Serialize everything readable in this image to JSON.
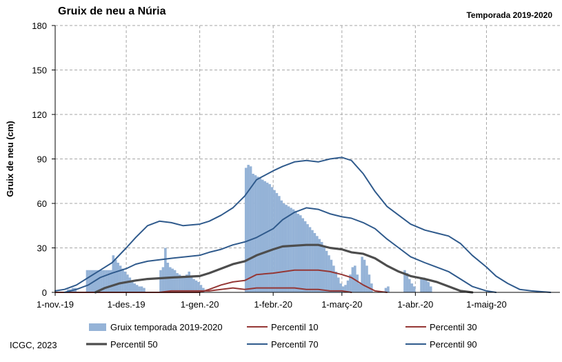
{
  "header": {
    "title": "Gruix de neu a Núria",
    "season": "Temporada 2019-2020"
  },
  "footer": {
    "credit": "ICGC, 2023"
  },
  "chart_data": {
    "type": "bar",
    "ylabel": "Gruix de neu (cm)",
    "ylim": [
      0,
      180
    ],
    "yticks": [
      0,
      30,
      60,
      90,
      120,
      150,
      180
    ],
    "x_date_start": "2019-11-01",
    "x_date_end": "2020-05-31",
    "xticks": [
      {
        "date": "2019-11-01",
        "label": "1-nov.-19"
      },
      {
        "date": "2019-12-01",
        "label": "1-des.-19"
      },
      {
        "date": "2020-01-01",
        "label": "1-gen.-20"
      },
      {
        "date": "2020-02-01",
        "label": "1-febr.-20"
      },
      {
        "date": "2020-03-01",
        "label": "1-març-20"
      },
      {
        "date": "2020-04-01",
        "label": "1-abr.-20"
      },
      {
        "date": "2020-05-01",
        "label": "1-maig-20"
      }
    ],
    "grid": true,
    "legend_position": "bottom",
    "colors": {
      "bars": "#95b3d7",
      "p10": "#953735",
      "p30": "#953735",
      "p50": "#4d4d4d",
      "p70": "#2f5a8c",
      "p90": "#2f5a8c",
      "grid": "#a6a6a6"
    },
    "bars": {
      "name": "Gruix temporada 2019-2020",
      "segments": [
        [
          "2019-11-06",
          2
        ],
        [
          "2019-11-07",
          2
        ],
        [
          "2019-11-08",
          3
        ],
        [
          "2019-11-09",
          3
        ],
        [
          "2019-11-14",
          15
        ],
        [
          "2019-11-15",
          15
        ],
        [
          "2019-11-16",
          15
        ],
        [
          "2019-11-17",
          15
        ],
        [
          "2019-11-18",
          15
        ],
        [
          "2019-11-19",
          15
        ],
        [
          "2019-11-20",
          15
        ],
        [
          "2019-11-21",
          15
        ],
        [
          "2019-11-22",
          15
        ],
        [
          "2019-11-23",
          15
        ],
        [
          "2019-11-24",
          15
        ],
        [
          "2019-11-25",
          25
        ],
        [
          "2019-11-26",
          22
        ],
        [
          "2019-11-27",
          20
        ],
        [
          "2019-11-28",
          18
        ],
        [
          "2019-11-29",
          16
        ],
        [
          "2019-11-30",
          14
        ],
        [
          "2019-12-01",
          12
        ],
        [
          "2019-12-02",
          10
        ],
        [
          "2019-12-03",
          8
        ],
        [
          "2019-12-04",
          6
        ],
        [
          "2019-12-05",
          5
        ],
        [
          "2019-12-06",
          4
        ],
        [
          "2019-12-07",
          4
        ],
        [
          "2019-12-08",
          3
        ],
        [
          "2019-12-15",
          15
        ],
        [
          "2019-12-16",
          17
        ],
        [
          "2019-12-17",
          30
        ],
        [
          "2019-12-18",
          20
        ],
        [
          "2019-12-19",
          17
        ],
        [
          "2019-12-20",
          16
        ],
        [
          "2019-12-21",
          15
        ],
        [
          "2019-12-22",
          13
        ],
        [
          "2019-12-23",
          12
        ],
        [
          "2019-12-24",
          11
        ],
        [
          "2019-12-25",
          10
        ],
        [
          "2019-12-26",
          12
        ],
        [
          "2019-12-27",
          14
        ],
        [
          "2019-12-28",
          10
        ],
        [
          "2019-12-29",
          9
        ],
        [
          "2019-12-30",
          8
        ],
        [
          "2019-12-31",
          7
        ],
        [
          "2020-01-01",
          5
        ],
        [
          "2020-01-02",
          3
        ],
        [
          "2020-01-20",
          84
        ],
        [
          "2020-01-21",
          86
        ],
        [
          "2020-01-22",
          85
        ],
        [
          "2020-01-23",
          80
        ],
        [
          "2020-01-24",
          79
        ],
        [
          "2020-01-25",
          78
        ],
        [
          "2020-01-26",
          77
        ],
        [
          "2020-01-27",
          76
        ],
        [
          "2020-01-28",
          75
        ],
        [
          "2020-01-29",
          74
        ],
        [
          "2020-01-30",
          73
        ],
        [
          "2020-01-31",
          71
        ],
        [
          "2020-02-01",
          69
        ],
        [
          "2020-02-02",
          67
        ],
        [
          "2020-02-03",
          65
        ],
        [
          "2020-02-04",
          62
        ],
        [
          "2020-02-05",
          60
        ],
        [
          "2020-02-06",
          59
        ],
        [
          "2020-02-07",
          58
        ],
        [
          "2020-02-08",
          57
        ],
        [
          "2020-02-09",
          56
        ],
        [
          "2020-02-10",
          55
        ],
        [
          "2020-02-11",
          53
        ],
        [
          "2020-02-12",
          52
        ],
        [
          "2020-02-13",
          50
        ],
        [
          "2020-02-14",
          48
        ],
        [
          "2020-02-15",
          46
        ],
        [
          "2020-02-16",
          44
        ],
        [
          "2020-02-17",
          42
        ],
        [
          "2020-02-18",
          40
        ],
        [
          "2020-02-19",
          38
        ],
        [
          "2020-02-20",
          36
        ],
        [
          "2020-02-21",
          34
        ],
        [
          "2020-02-22",
          31
        ],
        [
          "2020-02-23",
          28
        ],
        [
          "2020-02-24",
          25
        ],
        [
          "2020-02-25",
          22
        ],
        [
          "2020-02-26",
          18
        ],
        [
          "2020-02-27",
          14
        ],
        [
          "2020-02-28",
          10
        ],
        [
          "2020-02-29",
          6
        ],
        [
          "2020-03-01",
          4
        ],
        [
          "2020-03-02",
          5
        ],
        [
          "2020-03-03",
          8
        ],
        [
          "2020-03-04",
          12
        ],
        [
          "2020-03-05",
          17
        ],
        [
          "2020-03-06",
          18
        ],
        [
          "2020-03-07",
          12
        ],
        [
          "2020-03-08",
          6
        ],
        [
          "2020-03-09",
          24
        ],
        [
          "2020-03-10",
          22
        ],
        [
          "2020-03-11",
          18
        ],
        [
          "2020-03-12",
          12
        ],
        [
          "2020-03-13",
          6
        ],
        [
          "2020-03-19",
          3
        ],
        [
          "2020-03-20",
          4
        ],
        [
          "2020-03-27",
          15
        ],
        [
          "2020-03-28",
          13
        ],
        [
          "2020-03-29",
          9
        ],
        [
          "2020-03-30",
          6
        ],
        [
          "2020-03-31",
          4
        ],
        [
          "2020-04-03",
          10
        ],
        [
          "2020-04-04",
          10
        ],
        [
          "2020-04-05",
          9
        ],
        [
          "2020-04-06",
          7
        ],
        [
          "2020-04-07",
          4
        ]
      ]
    },
    "series": [
      {
        "name": "Percentil 10",
        "key": "p10",
        "width": 2,
        "points": [
          [
            "2019-12-15",
            0
          ],
          [
            "2019-12-20",
            1
          ],
          [
            "2020-01-01",
            1
          ],
          [
            "2020-01-05",
            1
          ],
          [
            "2020-01-10",
            2
          ],
          [
            "2020-01-15",
            3
          ],
          [
            "2020-01-20",
            2
          ],
          [
            "2020-01-25",
            3
          ],
          [
            "2020-01-28",
            3
          ],
          [
            "2020-02-01",
            3
          ],
          [
            "2020-02-05",
            3
          ],
          [
            "2020-02-10",
            3
          ],
          [
            "2020-02-15",
            2
          ],
          [
            "2020-02-20",
            2
          ],
          [
            "2020-02-25",
            1
          ],
          [
            "2020-03-01",
            1
          ],
          [
            "2020-03-05",
            0
          ]
        ]
      },
      {
        "name": "Percentil 30",
        "key": "p30",
        "width": 2,
        "points": [
          [
            "2019-11-01",
            0
          ],
          [
            "2020-01-01",
            0
          ],
          [
            "2020-01-05",
            2
          ],
          [
            "2020-01-10",
            5
          ],
          [
            "2020-01-15",
            7
          ],
          [
            "2020-01-20",
            8
          ],
          [
            "2020-01-25",
            12
          ],
          [
            "2020-02-01",
            13
          ],
          [
            "2020-02-10",
            15
          ],
          [
            "2020-02-15",
            15
          ],
          [
            "2020-02-20",
            15
          ],
          [
            "2020-02-25",
            14
          ],
          [
            "2020-03-01",
            12
          ],
          [
            "2020-03-05",
            10
          ],
          [
            "2020-03-10",
            5
          ],
          [
            "2020-03-15",
            1
          ],
          [
            "2020-03-20",
            0
          ]
        ]
      },
      {
        "name": "Percentil 50",
        "key": "p50",
        "width": 3.2,
        "points": [
          [
            "2019-11-18",
            0
          ],
          [
            "2019-11-22",
            3
          ],
          [
            "2019-11-28",
            6
          ],
          [
            "2019-12-05",
            8
          ],
          [
            "2019-12-10",
            9
          ],
          [
            "2019-12-20",
            10
          ],
          [
            "2020-01-01",
            11
          ],
          [
            "2020-01-05",
            13
          ],
          [
            "2020-01-10",
            16
          ],
          [
            "2020-01-15",
            19
          ],
          [
            "2020-01-20",
            21
          ],
          [
            "2020-01-25",
            25
          ],
          [
            "2020-02-01",
            29
          ],
          [
            "2020-02-05",
            31
          ],
          [
            "2020-02-15",
            32
          ],
          [
            "2020-02-20",
            32
          ],
          [
            "2020-02-25",
            30
          ],
          [
            "2020-03-01",
            29
          ],
          [
            "2020-03-05",
            27
          ],
          [
            "2020-03-10",
            26
          ],
          [
            "2020-03-15",
            23
          ],
          [
            "2020-03-20",
            18
          ],
          [
            "2020-03-25",
            14
          ],
          [
            "2020-03-30",
            11
          ],
          [
            "2020-04-05",
            9
          ],
          [
            "2020-04-10",
            7
          ],
          [
            "2020-04-15",
            4
          ],
          [
            "2020-04-20",
            1
          ],
          [
            "2020-04-25",
            0
          ]
        ]
      },
      {
        "name": "Percentil 70",
        "key": "p70",
        "width": 2,
        "points": [
          [
            "2019-11-05",
            0
          ],
          [
            "2019-11-10",
            2
          ],
          [
            "2019-11-15",
            5
          ],
          [
            "2019-11-20",
            10
          ],
          [
            "2019-11-25",
            13
          ],
          [
            "2019-12-01",
            16
          ],
          [
            "2019-12-05",
            19
          ],
          [
            "2019-12-10",
            21
          ],
          [
            "2019-12-20",
            23
          ],
          [
            "2020-01-01",
            25
          ],
          [
            "2020-01-05",
            27
          ],
          [
            "2020-01-10",
            29
          ],
          [
            "2020-01-15",
            32
          ],
          [
            "2020-01-20",
            34
          ],
          [
            "2020-01-25",
            37
          ],
          [
            "2020-02-01",
            43
          ],
          [
            "2020-02-05",
            49
          ],
          [
            "2020-02-10",
            54
          ],
          [
            "2020-02-15",
            57
          ],
          [
            "2020-02-20",
            56
          ],
          [
            "2020-02-25",
            53
          ],
          [
            "2020-03-01",
            51
          ],
          [
            "2020-03-05",
            50
          ],
          [
            "2020-03-10",
            47
          ],
          [
            "2020-03-15",
            43
          ],
          [
            "2020-03-20",
            36
          ],
          [
            "2020-03-25",
            30
          ],
          [
            "2020-03-30",
            24
          ],
          [
            "2020-04-05",
            20
          ],
          [
            "2020-04-10",
            17
          ],
          [
            "2020-04-15",
            14
          ],
          [
            "2020-04-20",
            9
          ],
          [
            "2020-04-25",
            4
          ],
          [
            "2020-05-01",
            1
          ],
          [
            "2020-05-05",
            0
          ]
        ]
      },
      {
        "name": "Percentil 90",
        "key": "p90",
        "width": 2,
        "points": [
          [
            "2019-11-01",
            1
          ],
          [
            "2019-11-05",
            2
          ],
          [
            "2019-11-10",
            5
          ],
          [
            "2019-11-15",
            10
          ],
          [
            "2019-11-20",
            15
          ],
          [
            "2019-11-25",
            20
          ],
          [
            "2019-12-01",
            30
          ],
          [
            "2019-12-05",
            37
          ],
          [
            "2019-12-10",
            45
          ],
          [
            "2019-12-15",
            48
          ],
          [
            "2019-12-20",
            47
          ],
          [
            "2019-12-25",
            45
          ],
          [
            "2020-01-01",
            46
          ],
          [
            "2020-01-05",
            48
          ],
          [
            "2020-01-10",
            52
          ],
          [
            "2020-01-15",
            57
          ],
          [
            "2020-01-20",
            65
          ],
          [
            "2020-01-25",
            76
          ],
          [
            "2020-02-01",
            82
          ],
          [
            "2020-02-05",
            85
          ],
          [
            "2020-02-10",
            88
          ],
          [
            "2020-02-15",
            89
          ],
          [
            "2020-02-20",
            88
          ],
          [
            "2020-02-25",
            90
          ],
          [
            "2020-03-01",
            91
          ],
          [
            "2020-03-05",
            89
          ],
          [
            "2020-03-10",
            80
          ],
          [
            "2020-03-15",
            68
          ],
          [
            "2020-03-20",
            58
          ],
          [
            "2020-03-25",
            52
          ],
          [
            "2020-03-30",
            46
          ],
          [
            "2020-04-05",
            42
          ],
          [
            "2020-04-10",
            40
          ],
          [
            "2020-04-15",
            38
          ],
          [
            "2020-04-20",
            33
          ],
          [
            "2020-04-25",
            25
          ],
          [
            "2020-05-01",
            17
          ],
          [
            "2020-05-05",
            11
          ],
          [
            "2020-05-10",
            6
          ],
          [
            "2020-05-15",
            2
          ],
          [
            "2020-05-20",
            1
          ],
          [
            "2020-05-28",
            0
          ]
        ]
      }
    ],
    "legend": [
      {
        "label": "Gruix temporada 2019-2020",
        "key": "bars",
        "kind": "bar"
      },
      {
        "label": "Percentil 10",
        "key": "p10",
        "kind": "line"
      },
      {
        "label": "Percentil 30",
        "key": "p30",
        "kind": "line"
      },
      {
        "label": "Percentil 50",
        "key": "p50",
        "kind": "line"
      },
      {
        "label": "Percentil 70",
        "key": "p70",
        "kind": "line"
      },
      {
        "label": "Percentil 90",
        "key": "p90",
        "kind": "line"
      }
    ]
  }
}
